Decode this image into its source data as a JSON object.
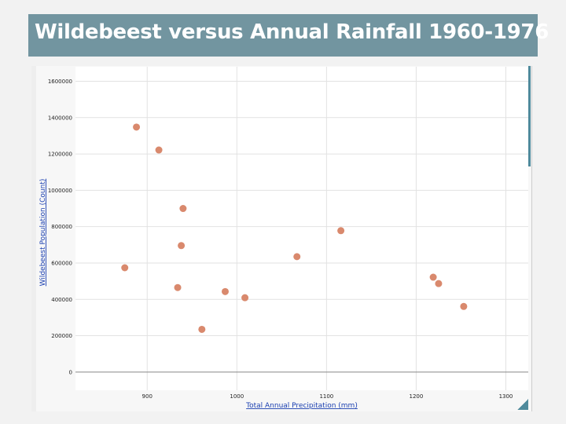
{
  "title": "Wildebeest versus Annual Rainfall 1960-1976",
  "chart_data": {
    "type": "scatter",
    "title": "Wildebeest versus Annual Rainfall 1960-1976",
    "xlabel": "Total Annual Precipitation (mm)",
    "ylabel": "Wildebeest Population (Count)",
    "xlim": [
      820,
      1325
    ],
    "ylim": [
      -100000,
      1680000
    ],
    "xticks": [
      900,
      1000,
      1100,
      1200,
      1300
    ],
    "yticks": [
      0,
      200000,
      400000,
      600000,
      800000,
      1000000,
      1200000,
      1400000,
      1600000
    ],
    "grid": true,
    "point_color": "#d9896d",
    "points": [
      {
        "x": 875,
        "y": 574000
      },
      {
        "x": 888,
        "y": 1348000
      },
      {
        "x": 913,
        "y": 1222000
      },
      {
        "x": 940,
        "y": 900000
      },
      {
        "x": 938,
        "y": 696000
      },
      {
        "x": 934,
        "y": 465000
      },
      {
        "x": 961,
        "y": 235000
      },
      {
        "x": 987,
        "y": 443000
      },
      {
        "x": 1009,
        "y": 409000
      },
      {
        "x": 1067,
        "y": 635000
      },
      {
        "x": 1116,
        "y": 778000
      },
      {
        "x": 1219,
        "y": 522000
      },
      {
        "x": 1225,
        "y": 487000
      },
      {
        "x": 1253,
        "y": 361000
      }
    ]
  }
}
